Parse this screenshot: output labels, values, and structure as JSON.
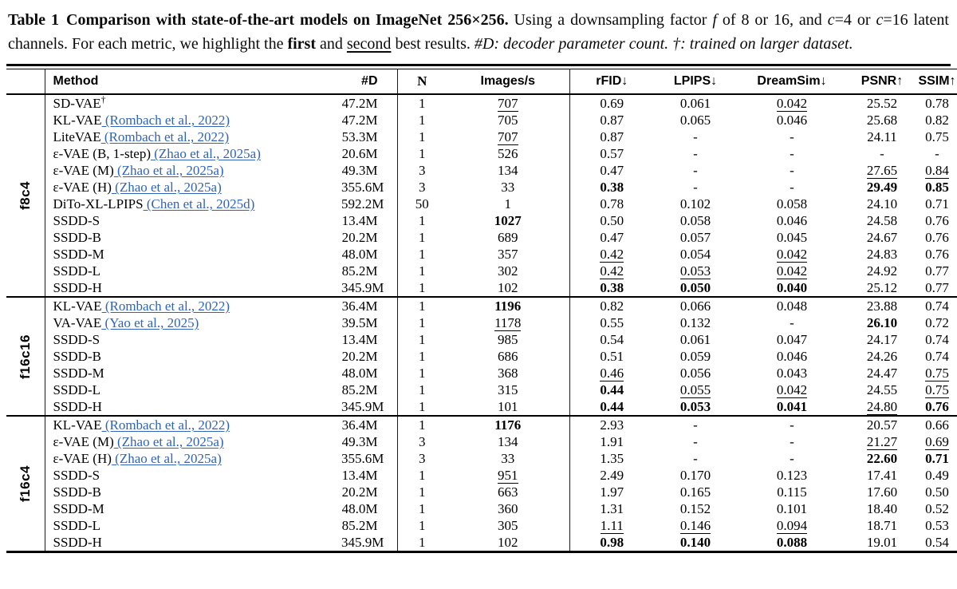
{
  "link_color": "#2E63BE",
  "text_color": "#000000",
  "caption": {
    "segments": [
      {
        "text": "Table 1",
        "bold": true,
        "gap_after": true
      },
      {
        "text": "Comparison with state-of-the-art models on ImageNet 256×256.",
        "bold": true
      },
      {
        "text": " Using a downsampling factor "
      },
      {
        "text": "f",
        "italic": true
      },
      {
        "text": " of 8 or 16, and "
      },
      {
        "text": "c",
        "italic": true
      },
      {
        "text": "=4 or "
      },
      {
        "text": "c",
        "italic": true
      },
      {
        "text": "=16 latent channels. For each metric, we highlight the "
      },
      {
        "text": "first",
        "bold": true
      },
      {
        "text": " and "
      },
      {
        "text": "second",
        "underline": true
      },
      {
        "text": " best results. "
      },
      {
        "text": "#D: decoder parameter count. †: trained on larger dataset.",
        "italic": true
      }
    ]
  },
  "table": {
    "columns": [
      {
        "label": "Method",
        "align": "left"
      },
      {
        "label": "#D",
        "align": "right"
      },
      {
        "label": "N",
        "align": "center",
        "bar": true,
        "serif": true
      },
      {
        "label": "Images/s",
        "align": "center"
      },
      {
        "label": "rFID↓",
        "align": "center",
        "bar": true
      },
      {
        "label": "LPIPS↓",
        "align": "center"
      },
      {
        "label": "DreamSim↓",
        "align": "center"
      },
      {
        "label": "PSNR↑",
        "align": "center"
      },
      {
        "label": "SSIM↑",
        "align": "center"
      }
    ],
    "groups": [
      {
        "label": "f8c4",
        "rows": [
          {
            "method": "SD-VAE",
            "sup": "†",
            "cite": "",
            "cells": [
              {
                "v": "47.2M"
              },
              {
                "v": "1"
              },
              {
                "v": "707",
                "s": "u"
              },
              {
                "v": "0.69"
              },
              {
                "v": "0.061"
              },
              {
                "v": "0.042",
                "s": "u"
              },
              {
                "v": "25.52"
              },
              {
                "v": "0.78"
              }
            ]
          },
          {
            "method": "KL-VAE",
            "cite": "(Rombach et al., 2022)",
            "cells": [
              {
                "v": "47.2M"
              },
              {
                "v": "1"
              },
              {
                "v": "705"
              },
              {
                "v": "0.87"
              },
              {
                "v": "0.065"
              },
              {
                "v": "0.046"
              },
              {
                "v": "25.68"
              },
              {
                "v": "0.82"
              }
            ]
          },
          {
            "method": "LiteVAE",
            "cite": "(Rombach et al., 2022)",
            "cells": [
              {
                "v": "53.3M"
              },
              {
                "v": "1"
              },
              {
                "v": "707",
                "s": "u"
              },
              {
                "v": "0.87"
              },
              {
                "v": "-"
              },
              {
                "v": "-"
              },
              {
                "v": "24.11"
              },
              {
                "v": "0.75"
              }
            ]
          },
          {
            "method": "ε-VAE (B, 1-step)",
            "cite": "(Zhao et al., 2025a)",
            "cells": [
              {
                "v": "20.6M"
              },
              {
                "v": "1"
              },
              {
                "v": "526"
              },
              {
                "v": "0.57"
              },
              {
                "v": "-"
              },
              {
                "v": "-"
              },
              {
                "v": "-"
              },
              {
                "v": "-"
              }
            ]
          },
          {
            "method": "ε-VAE (M)",
            "cite": "(Zhao et al., 2025a)",
            "cells": [
              {
                "v": "49.3M"
              },
              {
                "v": "3"
              },
              {
                "v": "134"
              },
              {
                "v": "0.47"
              },
              {
                "v": "-"
              },
              {
                "v": "-"
              },
              {
                "v": "27.65",
                "s": "u"
              },
              {
                "v": "0.84",
                "s": "u"
              }
            ]
          },
          {
            "method": "ε-VAE (H)",
            "cite": "(Zhao et al., 2025a)",
            "cells": [
              {
                "v": "355.6M"
              },
              {
                "v": "3"
              },
              {
                "v": "33"
              },
              {
                "v": "0.38",
                "s": "b"
              },
              {
                "v": "-"
              },
              {
                "v": "-"
              },
              {
                "v": "29.49",
                "s": "b"
              },
              {
                "v": "0.85",
                "s": "b"
              }
            ]
          },
          {
            "method": "DiTo-XL-LPIPS",
            "cite": "(Chen et al., 2025d)",
            "cells": [
              {
                "v": "592.2M"
              },
              {
                "v": "50"
              },
              {
                "v": "1"
              },
              {
                "v": "0.78"
              },
              {
                "v": "0.102"
              },
              {
                "v": "0.058"
              },
              {
                "v": "24.10"
              },
              {
                "v": "0.71"
              }
            ]
          },
          {
            "method": "SSDD-S",
            "cite": "",
            "cells": [
              {
                "v": "13.4M"
              },
              {
                "v": "1"
              },
              {
                "v": "1027",
                "s": "b"
              },
              {
                "v": "0.50"
              },
              {
                "v": "0.058"
              },
              {
                "v": "0.046"
              },
              {
                "v": "24.58"
              },
              {
                "v": "0.76"
              }
            ]
          },
          {
            "method": "SSDD-B",
            "cite": "",
            "cells": [
              {
                "v": "20.2M"
              },
              {
                "v": "1"
              },
              {
                "v": "689"
              },
              {
                "v": "0.47"
              },
              {
                "v": "0.057"
              },
              {
                "v": "0.045"
              },
              {
                "v": "24.67"
              },
              {
                "v": "0.76"
              }
            ]
          },
          {
            "method": "SSDD-M",
            "cite": "",
            "cells": [
              {
                "v": "48.0M"
              },
              {
                "v": "1"
              },
              {
                "v": "357"
              },
              {
                "v": "0.42",
                "s": "u"
              },
              {
                "v": "0.054"
              },
              {
                "v": "0.042",
                "s": "u"
              },
              {
                "v": "24.83"
              },
              {
                "v": "0.76"
              }
            ]
          },
          {
            "method": "SSDD-L",
            "cite": "",
            "cells": [
              {
                "v": "85.2M"
              },
              {
                "v": "1"
              },
              {
                "v": "302"
              },
              {
                "v": "0.42",
                "s": "u"
              },
              {
                "v": "0.053",
                "s": "u"
              },
              {
                "v": "0.042",
                "s": "u"
              },
              {
                "v": "24.92"
              },
              {
                "v": "0.77"
              }
            ]
          },
          {
            "method": "SSDD-H",
            "cite": "",
            "cells": [
              {
                "v": "345.9M"
              },
              {
                "v": "1"
              },
              {
                "v": "102"
              },
              {
                "v": "0.38",
                "s": "b"
              },
              {
                "v": "0.050",
                "s": "b"
              },
              {
                "v": "0.040",
                "s": "b"
              },
              {
                "v": "25.12"
              },
              {
                "v": "0.77"
              }
            ]
          }
        ]
      },
      {
        "label": "f16c16",
        "rows": [
          {
            "method": "KL-VAE",
            "cite": "(Rombach et al., 2022)",
            "cells": [
              {
                "v": "36.4M"
              },
              {
                "v": "1"
              },
              {
                "v": "1196",
                "s": "b"
              },
              {
                "v": "0.82"
              },
              {
                "v": "0.066"
              },
              {
                "v": "0.048"
              },
              {
                "v": "23.88"
              },
              {
                "v": "0.74"
              }
            ]
          },
          {
            "method": "VA-VAE",
            "cite": "(Yao et al., 2025)",
            "cells": [
              {
                "v": "39.5M"
              },
              {
                "v": "1"
              },
              {
                "v": "1178",
                "s": "u"
              },
              {
                "v": "0.55"
              },
              {
                "v": "0.132"
              },
              {
                "v": "-"
              },
              {
                "v": "26.10",
                "s": "b"
              },
              {
                "v": "0.72"
              }
            ]
          },
          {
            "method": "SSDD-S",
            "cite": "",
            "cells": [
              {
                "v": "13.4M"
              },
              {
                "v": "1"
              },
              {
                "v": "985"
              },
              {
                "v": "0.54"
              },
              {
                "v": "0.061"
              },
              {
                "v": "0.047"
              },
              {
                "v": "24.17"
              },
              {
                "v": "0.74"
              }
            ]
          },
          {
            "method": "SSDD-B",
            "cite": "",
            "cells": [
              {
                "v": "20.2M"
              },
              {
                "v": "1"
              },
              {
                "v": "686"
              },
              {
                "v": "0.51"
              },
              {
                "v": "0.059"
              },
              {
                "v": "0.046"
              },
              {
                "v": "24.26"
              },
              {
                "v": "0.74"
              }
            ]
          },
          {
            "method": "SSDD-M",
            "cite": "",
            "cells": [
              {
                "v": "48.0M"
              },
              {
                "v": "1"
              },
              {
                "v": "368"
              },
              {
                "v": "0.46",
                "s": "u"
              },
              {
                "v": "0.056"
              },
              {
                "v": "0.043"
              },
              {
                "v": "24.47"
              },
              {
                "v": "0.75",
                "s": "u"
              }
            ]
          },
          {
            "method": "SSDD-L",
            "cite": "",
            "cells": [
              {
                "v": "85.2M"
              },
              {
                "v": "1"
              },
              {
                "v": "315"
              },
              {
                "v": "0.44",
                "s": "b"
              },
              {
                "v": "0.055",
                "s": "u"
              },
              {
                "v": "0.042",
                "s": "u"
              },
              {
                "v": "24.55"
              },
              {
                "v": "0.75",
                "s": "u"
              }
            ]
          },
          {
            "method": "SSDD-H",
            "cite": "",
            "cells": [
              {
                "v": "345.9M"
              },
              {
                "v": "1"
              },
              {
                "v": "101"
              },
              {
                "v": "0.44",
                "s": "b"
              },
              {
                "v": "0.053",
                "s": "b"
              },
              {
                "v": "0.041",
                "s": "b"
              },
              {
                "v": "24.80",
                "s": "u"
              },
              {
                "v": "0.76",
                "s": "b"
              }
            ]
          }
        ]
      },
      {
        "label": "f16c4",
        "rows": [
          {
            "method": "KL-VAE",
            "cite": "(Rombach et al., 2022)",
            "cells": [
              {
                "v": "36.4M"
              },
              {
                "v": "1"
              },
              {
                "v": "1176",
                "s": "b"
              },
              {
                "v": "2.93"
              },
              {
                "v": "-"
              },
              {
                "v": "-"
              },
              {
                "v": "20.57"
              },
              {
                "v": "0.66"
              }
            ]
          },
          {
            "method": "ε-VAE (M)",
            "cite": "(Zhao et al., 2025a)",
            "cells": [
              {
                "v": "49.3M"
              },
              {
                "v": "3"
              },
              {
                "v": "134"
              },
              {
                "v": "1.91"
              },
              {
                "v": "-"
              },
              {
                "v": "-"
              },
              {
                "v": "21.27",
                "s": "u"
              },
              {
                "v": "0.69",
                "s": "u"
              }
            ]
          },
          {
            "method": "ε-VAE (H)",
            "cite": "(Zhao et al., 2025a)",
            "cells": [
              {
                "v": "355.6M"
              },
              {
                "v": "3"
              },
              {
                "v": "33"
              },
              {
                "v": "1.35"
              },
              {
                "v": "-"
              },
              {
                "v": "-"
              },
              {
                "v": "22.60",
                "s": "b"
              },
              {
                "v": "0.71",
                "s": "b"
              }
            ]
          },
          {
            "method": "SSDD-S",
            "cite": "",
            "cells": [
              {
                "v": "13.4M"
              },
              {
                "v": "1"
              },
              {
                "v": "951",
                "s": "u"
              },
              {
                "v": "2.49"
              },
              {
                "v": "0.170"
              },
              {
                "v": "0.123"
              },
              {
                "v": "17.41"
              },
              {
                "v": "0.49"
              }
            ]
          },
          {
            "method": "SSDD-B",
            "cite": "",
            "cells": [
              {
                "v": "20.2M"
              },
              {
                "v": "1"
              },
              {
                "v": "663"
              },
              {
                "v": "1.97"
              },
              {
                "v": "0.165"
              },
              {
                "v": "0.115"
              },
              {
                "v": "17.60"
              },
              {
                "v": "0.50"
              }
            ]
          },
          {
            "method": "SSDD-M",
            "cite": "",
            "cells": [
              {
                "v": "48.0M"
              },
              {
                "v": "1"
              },
              {
                "v": "360"
              },
              {
                "v": "1.31"
              },
              {
                "v": "0.152"
              },
              {
                "v": "0.101"
              },
              {
                "v": "18.40"
              },
              {
                "v": "0.52"
              }
            ]
          },
          {
            "method": "SSDD-L",
            "cite": "",
            "cells": [
              {
                "v": "85.2M"
              },
              {
                "v": "1"
              },
              {
                "v": "305"
              },
              {
                "v": "1.11",
                "s": "u"
              },
              {
                "v": "0.146",
                "s": "u"
              },
              {
                "v": "0.094",
                "s": "u"
              },
              {
                "v": "18.71"
              },
              {
                "v": "0.53"
              }
            ]
          },
          {
            "method": "SSDD-H",
            "cite": "",
            "cells": [
              {
                "v": "345.9M"
              },
              {
                "v": "1"
              },
              {
                "v": "102"
              },
              {
                "v": "0.98",
                "s": "b"
              },
              {
                "v": "0.140",
                "s": "b"
              },
              {
                "v": "0.088",
                "s": "b"
              },
              {
                "v": "19.01"
              },
              {
                "v": "0.54"
              }
            ]
          }
        ]
      }
    ]
  }
}
